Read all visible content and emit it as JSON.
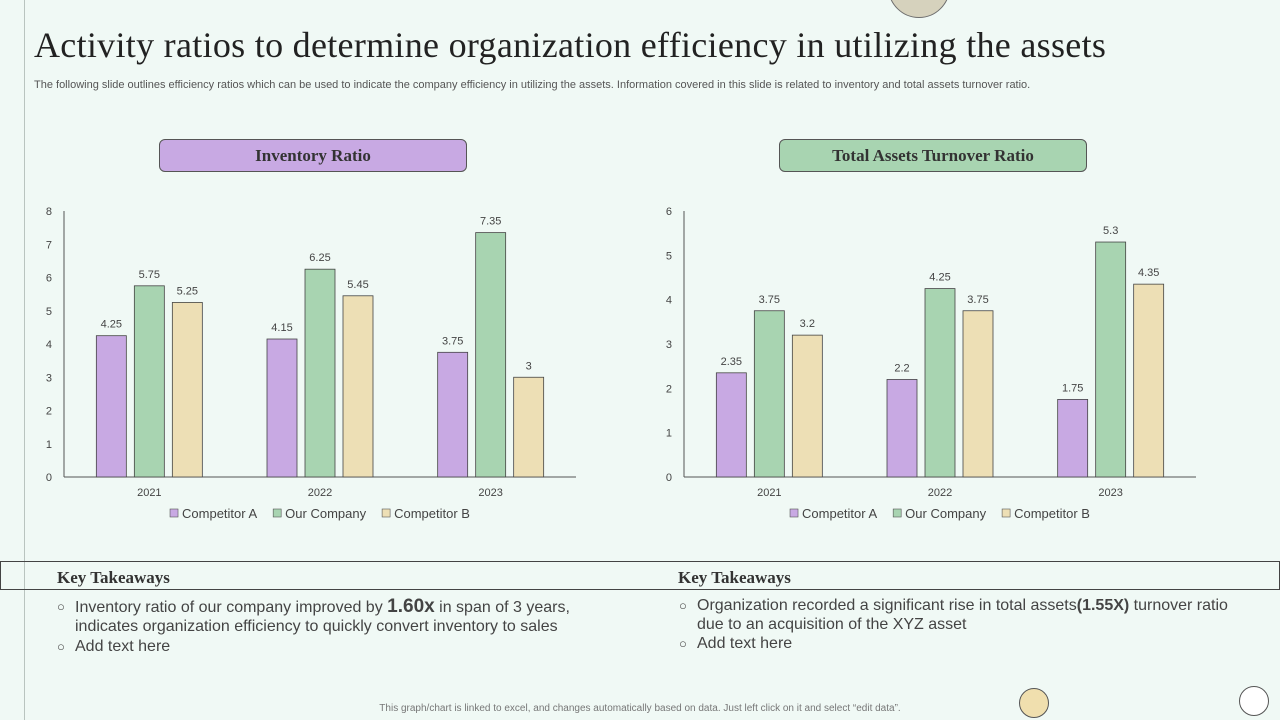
{
  "slide": {
    "title": "Activity ratios to determine organization efficiency in utilizing the assets",
    "subtitle": "The following slide outlines efficiency ratios which can be used to indicate the company efficiency in utilizing the assets. Information covered in this slide is related to inventory and total assets turnover ratio.",
    "footnote": "This graph/chart is linked to excel, and changes automatically based on data. Just left click on it and select “edit data”."
  },
  "colors": {
    "competitor_a": "#c8a9e3",
    "our_company": "#a8d4b1",
    "competitor_b": "#eddfb5",
    "header_left_bg": "#c8a9e3",
    "header_right_bg": "#a8d4b1"
  },
  "takeaways": {
    "left": {
      "title": "Key Takeaways",
      "item1_pre": "Inventory  ratio of our company improved by ",
      "item1_highlight": "1.60x",
      "item1_post": " in span of 3 years, indicates organization efficiency to quickly convert inventory to sales",
      "item2": "Add text here"
    },
    "right": {
      "title": "Key Takeaways",
      "item1_pre": "Organization recorded a significant rise in total assets",
      "item1_highlight": "(1.55X)",
      "item1_post": " turnover  ratio due to an acquisition of the XYZ asset",
      "item2": "Add text here"
    }
  },
  "chart_data": [
    {
      "type": "bar",
      "title": "Inventory Ratio",
      "categories": [
        "2021",
        "2022",
        "2023"
      ],
      "series": [
        {
          "name": "Competitor A",
          "values": [
            4.25,
            4.15,
            3.75
          ]
        },
        {
          "name": "Our Company",
          "values": [
            5.75,
            6.25,
            7.35
          ]
        },
        {
          "name": "Competitor B",
          "values": [
            5.25,
            5.45,
            3
          ]
        }
      ],
      "ylim": [
        0,
        8
      ],
      "yticks": [
        0,
        1,
        2,
        3,
        4,
        5,
        6,
        7,
        8
      ],
      "xlabel": "",
      "ylabel": "",
      "legend": "bottom"
    },
    {
      "type": "bar",
      "title": "Total Assets Turnover Ratio",
      "categories": [
        "2021",
        "2022",
        "2023"
      ],
      "series": [
        {
          "name": "Competitor A",
          "values": [
            2.35,
            2.2,
            1.75
          ]
        },
        {
          "name": "Our Company",
          "values": [
            3.75,
            4.25,
            5.3
          ]
        },
        {
          "name": "Competitor B",
          "values": [
            3.2,
            3.75,
            4.35
          ]
        }
      ],
      "ylim": [
        0,
        6
      ],
      "yticks": [
        0,
        1,
        2,
        3,
        4,
        5,
        6
      ],
      "xlabel": "",
      "ylabel": "",
      "legend": "bottom"
    }
  ]
}
